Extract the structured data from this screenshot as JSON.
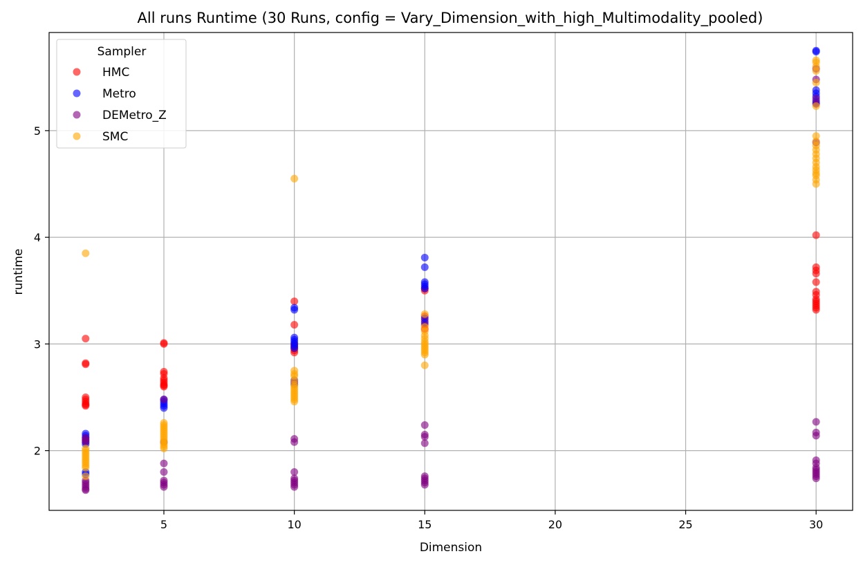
{
  "chart_data": {
    "type": "scatter",
    "title": "All runs Runtime (30 Runs, config = Vary_Dimension_with_high_Multimodality_pooled)",
    "xlabel": "Dimension",
    "ylabel": "runtime",
    "xlim": [
      0.6,
      31.4
    ],
    "ylim": [
      1.44,
      5.92
    ],
    "xticks": [
      5,
      10,
      15,
      20,
      25,
      30
    ],
    "yticks": [
      2,
      3,
      4,
      5
    ],
    "grid": true,
    "legend": {
      "title": "Sampler",
      "placement": "top-left"
    },
    "series": [
      {
        "name": "HMC",
        "color": "#ff0000",
        "points": [
          [
            2,
            3.05
          ],
          [
            2,
            2.82
          ],
          [
            2,
            2.81
          ],
          [
            2,
            2.5
          ],
          [
            2,
            2.48
          ],
          [
            2,
            2.46
          ],
          [
            2,
            2.44
          ],
          [
            2,
            2.43
          ],
          [
            2,
            2.42
          ],
          [
            5,
            3.01
          ],
          [
            5,
            3.0
          ],
          [
            5,
            2.74
          ],
          [
            5,
            2.72
          ],
          [
            5,
            2.68
          ],
          [
            5,
            2.66
          ],
          [
            5,
            2.64
          ],
          [
            5,
            2.62
          ],
          [
            5,
            2.61
          ],
          [
            5,
            2.6
          ],
          [
            10,
            3.4
          ],
          [
            10,
            3.18
          ],
          [
            10,
            3.0
          ],
          [
            10,
            2.98
          ],
          [
            10,
            2.96
          ],
          [
            10,
            2.94
          ],
          [
            10,
            2.92
          ],
          [
            15,
            3.52
          ],
          [
            15,
            3.5
          ],
          [
            15,
            3.26
          ],
          [
            15,
            3.22
          ],
          [
            15,
            3.18
          ],
          [
            15,
            3.14
          ],
          [
            30,
            4.02
          ],
          [
            30,
            3.72
          ],
          [
            30,
            3.69
          ],
          [
            30,
            3.66
          ],
          [
            30,
            3.58
          ],
          [
            30,
            3.49
          ],
          [
            30,
            3.46
          ],
          [
            30,
            3.42
          ],
          [
            30,
            3.4
          ],
          [
            30,
            3.38
          ],
          [
            30,
            3.36
          ],
          [
            30,
            3.34
          ],
          [
            30,
            3.32
          ]
        ]
      },
      {
        "name": "Metro",
        "color": "#0000ff",
        "points": [
          [
            2,
            2.16
          ],
          [
            2,
            2.14
          ],
          [
            2,
            2.12
          ],
          [
            2,
            2.1
          ],
          [
            2,
            2.08
          ],
          [
            2,
            2.06
          ],
          [
            2,
            1.8
          ],
          [
            2,
            1.78
          ],
          [
            5,
            2.48
          ],
          [
            5,
            2.46
          ],
          [
            5,
            2.44
          ],
          [
            5,
            2.42
          ],
          [
            5,
            2.4
          ],
          [
            10,
            3.34
          ],
          [
            10,
            3.32
          ],
          [
            10,
            3.06
          ],
          [
            10,
            3.04
          ],
          [
            10,
            3.02
          ],
          [
            10,
            3.0
          ],
          [
            10,
            2.98
          ],
          [
            10,
            2.96
          ],
          [
            10,
            2.66
          ],
          [
            10,
            2.62
          ],
          [
            15,
            3.81
          ],
          [
            15,
            3.72
          ],
          [
            15,
            3.58
          ],
          [
            15,
            3.56
          ],
          [
            15,
            3.54
          ],
          [
            15,
            3.52
          ],
          [
            15,
            3.24
          ],
          [
            15,
            3.2
          ],
          [
            30,
            5.75
          ],
          [
            30,
            5.74
          ],
          [
            30,
            5.38
          ],
          [
            30,
            5.35
          ],
          [
            30,
            5.32
          ],
          [
            30,
            5.28
          ],
          [
            30,
            5.26
          ]
        ]
      },
      {
        "name": "DEMetro_Z",
        "color": "#800080",
        "points": [
          [
            2,
            2.12
          ],
          [
            2,
            2.1
          ],
          [
            2,
            2.08
          ],
          [
            2,
            1.72
          ],
          [
            2,
            1.7
          ],
          [
            2,
            1.68
          ],
          [
            2,
            1.66
          ],
          [
            2,
            1.64
          ],
          [
            2,
            1.63
          ],
          [
            5,
            2.48
          ],
          [
            5,
            2.08
          ],
          [
            5,
            1.88
          ],
          [
            5,
            1.8
          ],
          [
            5,
            1.72
          ],
          [
            5,
            1.7
          ],
          [
            5,
            1.68
          ],
          [
            5,
            1.66
          ],
          [
            10,
            2.64
          ],
          [
            10,
            2.11
          ],
          [
            10,
            2.08
          ],
          [
            10,
            1.8
          ],
          [
            10,
            1.74
          ],
          [
            10,
            1.72
          ],
          [
            10,
            1.7
          ],
          [
            10,
            1.68
          ],
          [
            10,
            1.66
          ],
          [
            15,
            2.24
          ],
          [
            15,
            2.15
          ],
          [
            15,
            2.13
          ],
          [
            15,
            2.07
          ],
          [
            15,
            1.76
          ],
          [
            15,
            1.74
          ],
          [
            15,
            1.72
          ],
          [
            15,
            1.7
          ],
          [
            15,
            1.68
          ],
          [
            30,
            5.58
          ],
          [
            30,
            5.48
          ],
          [
            30,
            5.3
          ],
          [
            30,
            5.25
          ],
          [
            30,
            4.89
          ],
          [
            30,
            2.27
          ],
          [
            30,
            2.17
          ],
          [
            30,
            2.14
          ],
          [
            30,
            1.91
          ],
          [
            30,
            1.88
          ],
          [
            30,
            1.84
          ],
          [
            30,
            1.82
          ],
          [
            30,
            1.8
          ],
          [
            30,
            1.78
          ],
          [
            30,
            1.76
          ],
          [
            30,
            1.74
          ]
        ]
      },
      {
        "name": "SMC",
        "color": "#ffa500",
        "points": [
          [
            2,
            3.85
          ],
          [
            2,
            2.02
          ],
          [
            2,
            2.0
          ],
          [
            2,
            1.98
          ],
          [
            2,
            1.96
          ],
          [
            2,
            1.94
          ],
          [
            2,
            1.92
          ],
          [
            2,
            1.9
          ],
          [
            2,
            1.88
          ],
          [
            2,
            1.86
          ],
          [
            2,
            1.84
          ],
          [
            2,
            1.76
          ],
          [
            5,
            2.26
          ],
          [
            5,
            2.24
          ],
          [
            5,
            2.22
          ],
          [
            5,
            2.2
          ],
          [
            5,
            2.18
          ],
          [
            5,
            2.16
          ],
          [
            5,
            2.14
          ],
          [
            5,
            2.12
          ],
          [
            5,
            2.1
          ],
          [
            5,
            2.08
          ],
          [
            5,
            2.06
          ],
          [
            5,
            2.04
          ],
          [
            5,
            2.02
          ],
          [
            10,
            4.55
          ],
          [
            10,
            2.75
          ],
          [
            10,
            2.72
          ],
          [
            10,
            2.7
          ],
          [
            10,
            2.66
          ],
          [
            10,
            2.62
          ],
          [
            10,
            2.6
          ],
          [
            10,
            2.58
          ],
          [
            10,
            2.56
          ],
          [
            10,
            2.54
          ],
          [
            10,
            2.52
          ],
          [
            10,
            2.5
          ],
          [
            10,
            2.48
          ],
          [
            10,
            2.46
          ],
          [
            15,
            3.28
          ],
          [
            15,
            3.16
          ],
          [
            15,
            3.12
          ],
          [
            15,
            3.08
          ],
          [
            15,
            3.05
          ],
          [
            15,
            3.02
          ],
          [
            15,
            3.0
          ],
          [
            15,
            2.98
          ],
          [
            15,
            2.96
          ],
          [
            15,
            2.94
          ],
          [
            15,
            2.92
          ],
          [
            15,
            2.9
          ],
          [
            15,
            2.8
          ],
          [
            30,
            5.66
          ],
          [
            30,
            5.64
          ],
          [
            30,
            5.6
          ],
          [
            30,
            5.56
          ],
          [
            30,
            5.45
          ],
          [
            30,
            5.23
          ],
          [
            30,
            4.95
          ],
          [
            30,
            4.9
          ],
          [
            30,
            4.86
          ],
          [
            30,
            4.82
          ],
          [
            30,
            4.78
          ],
          [
            30,
            4.74
          ],
          [
            30,
            4.7
          ],
          [
            30,
            4.66
          ],
          [
            30,
            4.63
          ],
          [
            30,
            4.6
          ],
          [
            30,
            4.58
          ],
          [
            30,
            4.54
          ],
          [
            30,
            4.5
          ]
        ]
      }
    ]
  }
}
